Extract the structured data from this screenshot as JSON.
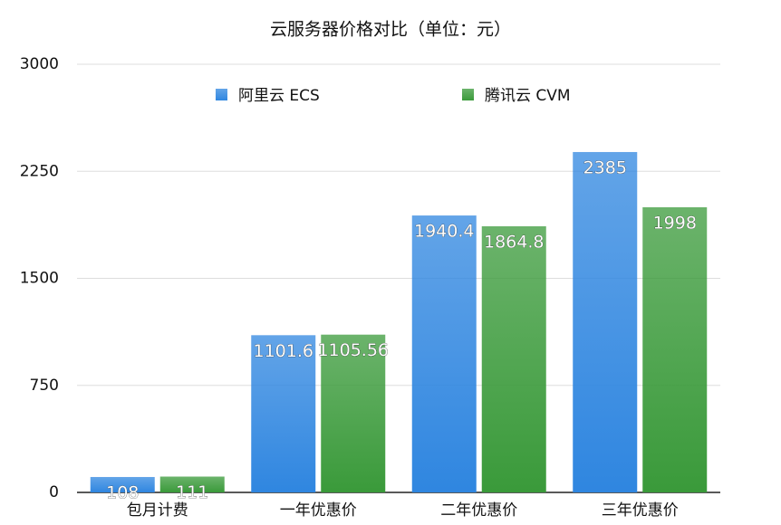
{
  "chart_data": {
    "type": "bar",
    "title": "云服务器价格对比（单位：元）",
    "categories": [
      "包月计费",
      "一年优惠价",
      "二年优惠价",
      "三年优惠价"
    ],
    "series": [
      {
        "name": "阿里云 ECS",
        "color": "#2f86e0",
        "values": [
          108,
          1101.6,
          1940.4,
          2385
        ]
      },
      {
        "name": "腾讯云 CVM",
        "color": "#3a9a3a",
        "values": [
          111,
          1105.56,
          1864.8,
          1998
        ]
      }
    ],
    "ylim": [
      0,
      3000
    ],
    "yticks": [
      0,
      750,
      1500,
      2250,
      3000
    ],
    "grid": true,
    "legend": "top"
  }
}
